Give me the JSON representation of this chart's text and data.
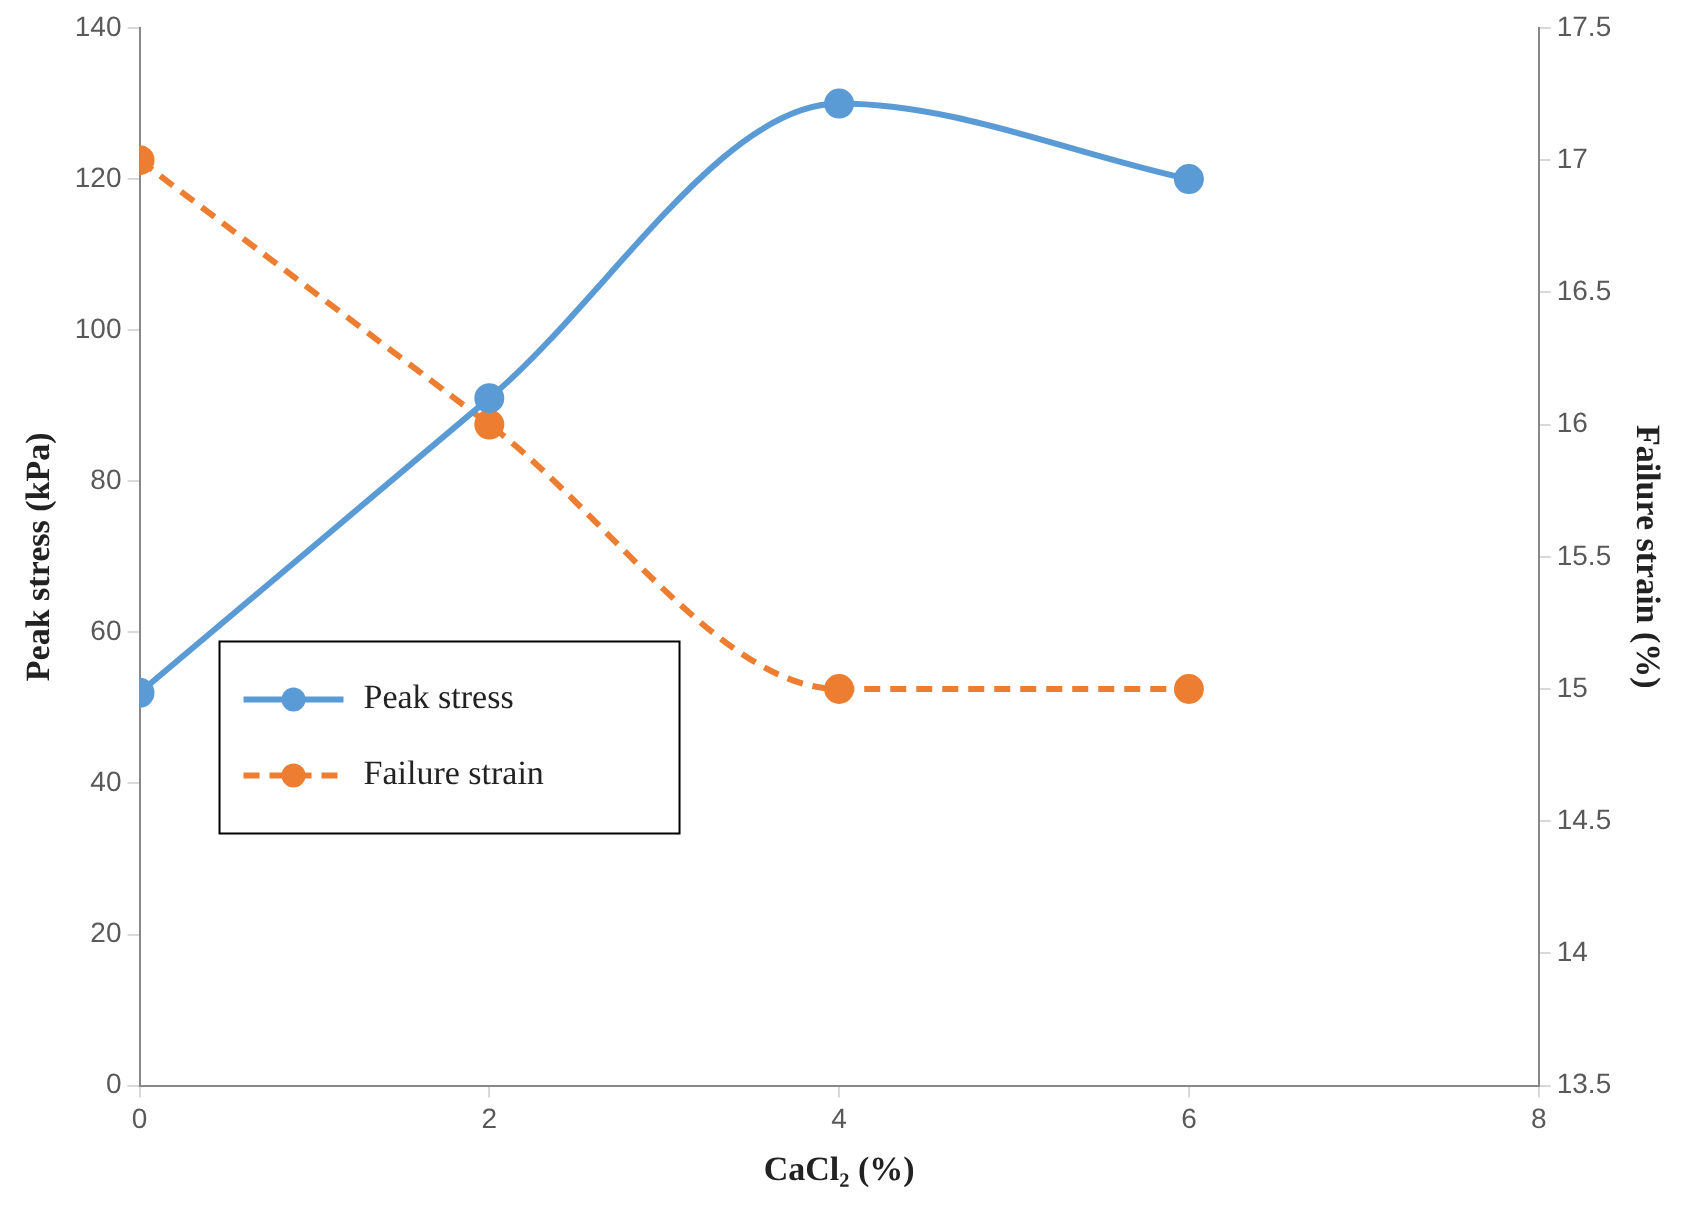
{
  "chart_data": {
    "type": "line",
    "xlabel": "CaCl₂ (%)",
    "ylabel": "Peak stress (kPa)",
    "y2label": "Failure strain (%)",
    "x": [
      0,
      2,
      4,
      6
    ],
    "series": [
      {
        "name": "Peak stress",
        "color": "#5b9bd5",
        "values": [
          52,
          91,
          130,
          120
        ]
      },
      {
        "name": "Failure strain",
        "color": "#ed7d31",
        "values": [
          17,
          16,
          15,
          15
        ],
        "axis": "y2",
        "line_style": "dashed"
      }
    ],
    "xlim": [
      0,
      8
    ],
    "xticks": [
      0,
      2,
      4,
      6,
      8
    ],
    "ylim": [
      0,
      140
    ],
    "yticks": [
      0,
      20,
      40,
      60,
      80,
      100,
      120,
      140
    ],
    "y2lim": [
      13.5,
      17.5
    ],
    "y2ticks": [
      13.5,
      14,
      14.5,
      15,
      15.5,
      16,
      16.5,
      17,
      17.5
    ],
    "grid": false,
    "legend": "left",
    "marker": "circle",
    "line_style": "solid"
  }
}
